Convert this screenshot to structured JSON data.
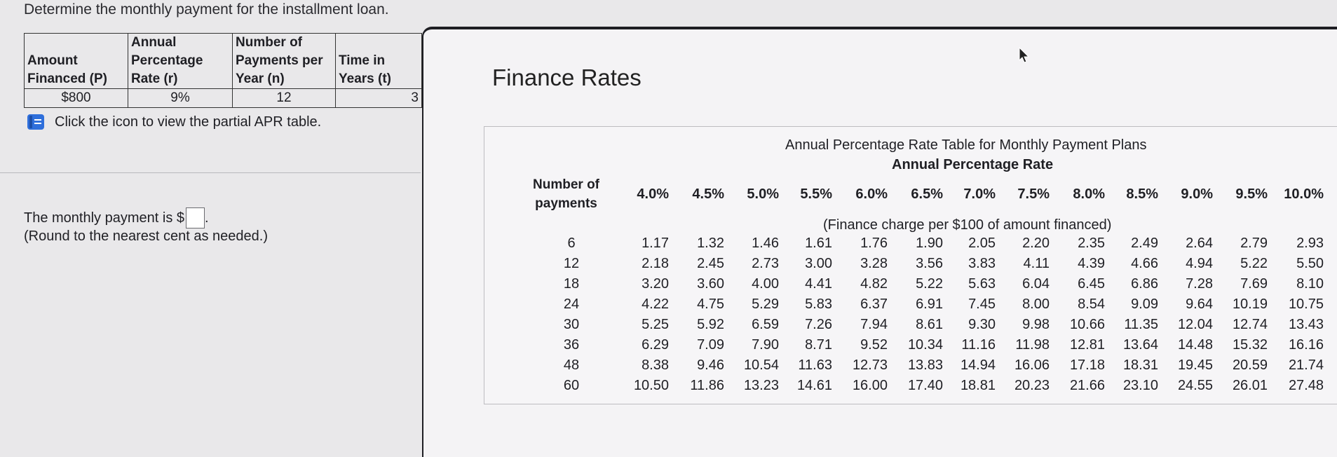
{
  "question": "Determine the monthly payment for the installment loan.",
  "loan_table": {
    "headers": [
      [
        "Amount",
        "Financed (P)"
      ],
      [
        "Annual",
        "Percentage",
        "Rate (r)"
      ],
      [
        "Number of",
        "Payments per",
        "Year (n)"
      ],
      [
        "Time in",
        "Years (t)"
      ]
    ],
    "values": [
      "$800",
      "9%",
      "12",
      "3"
    ]
  },
  "hint": "Click the icon to view the partial APR table.",
  "answer": {
    "prefix": "The monthly payment is $",
    "suffix": ".",
    "note": "(Round to the nearest cent as needed.)"
  },
  "panel": {
    "title": "Finance Rates",
    "table_title": "Annual Percentage Rate Table for Monthly Payment Plans",
    "table_subtitle": "Annual Percentage Rate",
    "row_header": [
      "Number of",
      "payments"
    ],
    "finance_note": "(Finance charge per $100 of amount financed)",
    "rates": [
      "4.0%",
      "4.5%",
      "5.0%",
      "5.5%",
      "6.0%",
      "6.5%",
      "7.0%",
      "7.5%",
      "8.0%",
      "8.5%",
      "9.0%",
      "9.5%",
      "10.0%"
    ],
    "rows": [
      {
        "n": "6",
        "values": [
          "1.17",
          "1.32",
          "1.46",
          "1.61",
          "1.76",
          "1.90",
          "2.05",
          "2.20",
          "2.35",
          "2.49",
          "2.64",
          "2.79",
          "2.93"
        ]
      },
      {
        "n": "12",
        "values": [
          "2.18",
          "2.45",
          "2.73",
          "3.00",
          "3.28",
          "3.56",
          "3.83",
          "4.11",
          "4.39",
          "4.66",
          "4.94",
          "5.22",
          "5.50"
        ]
      },
      {
        "n": "18",
        "values": [
          "3.20",
          "3.60",
          "4.00",
          "4.41",
          "4.82",
          "5.22",
          "5.63",
          "6.04",
          "6.45",
          "6.86",
          "7.28",
          "7.69",
          "8.10"
        ]
      },
      {
        "n": "24",
        "values": [
          "4.22",
          "4.75",
          "5.29",
          "5.83",
          "6.37",
          "6.91",
          "7.45",
          "8.00",
          "8.54",
          "9.09",
          "9.64",
          "10.19",
          "10.75"
        ]
      },
      {
        "n": "30",
        "values": [
          "5.25",
          "5.92",
          "6.59",
          "7.26",
          "7.94",
          "8.61",
          "9.30",
          "9.98",
          "10.66",
          "11.35",
          "12.04",
          "12.74",
          "13.43"
        ]
      },
      {
        "n": "36",
        "values": [
          "6.29",
          "7.09",
          "7.90",
          "8.71",
          "9.52",
          "10.34",
          "11.16",
          "11.98",
          "12.81",
          "13.64",
          "14.48",
          "15.32",
          "16.16"
        ]
      },
      {
        "n": "48",
        "values": [
          "8.38",
          "9.46",
          "10.54",
          "11.63",
          "12.73",
          "13.83",
          "14.94",
          "16.06",
          "17.18",
          "18.31",
          "19.45",
          "20.59",
          "21.74"
        ]
      },
      {
        "n": "60",
        "values": [
          "10.50",
          "11.86",
          "13.23",
          "14.61",
          "16.00",
          "17.40",
          "18.81",
          "20.23",
          "21.66",
          "23.10",
          "24.55",
          "26.01",
          "27.48"
        ]
      }
    ]
  },
  "colors": {
    "icon_blue": "#2f6fdb",
    "panel_border": "#1e1e23"
  },
  "icons": {
    "table_icon": "book-icon",
    "cursor": "pointer-cursor-icon"
  }
}
